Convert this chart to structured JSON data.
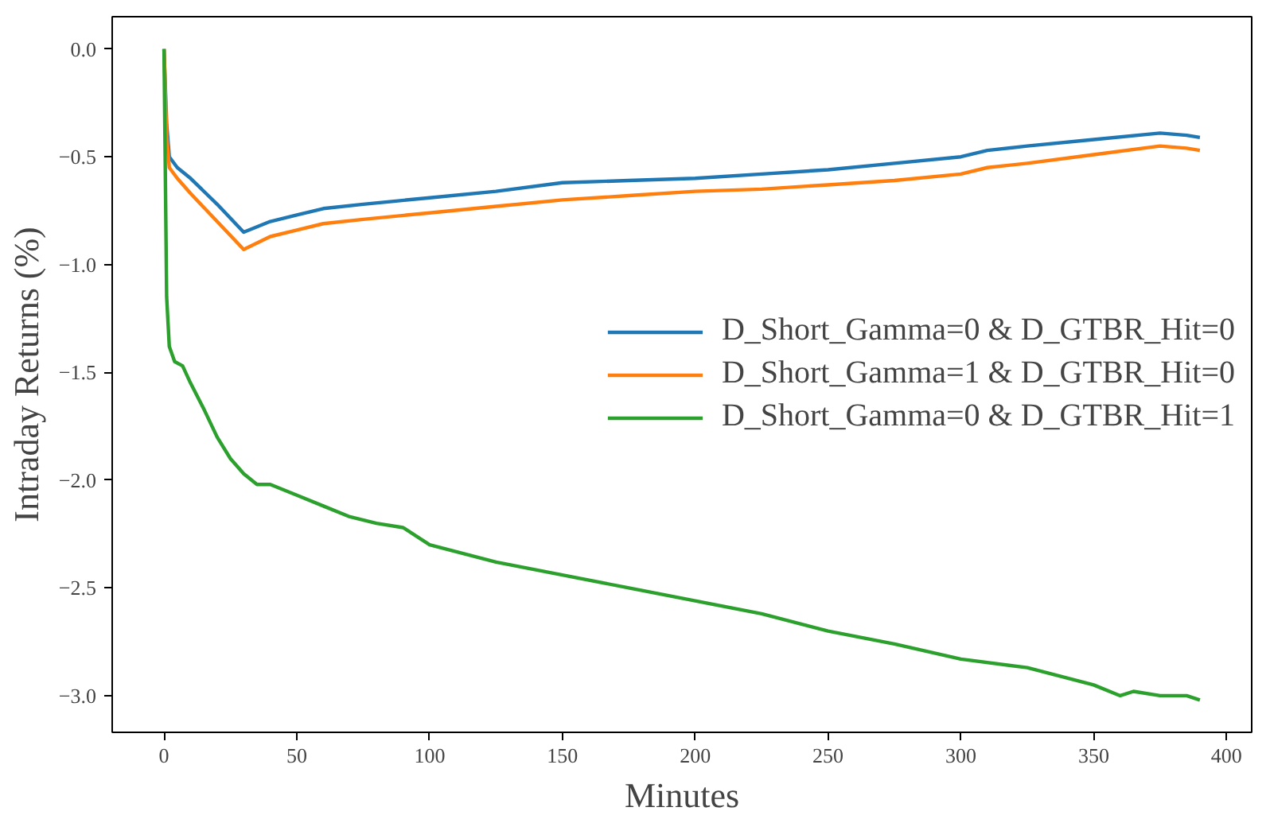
{
  "chart_data": {
    "type": "line",
    "xlabel": "Minutes",
    "ylabel": "Intraday Returns (%)",
    "xlim": [
      -19.5,
      409.5
    ],
    "ylim": [
      -3.17,
      0.15
    ],
    "xticks": [
      0,
      50,
      100,
      150,
      200,
      250,
      300,
      350,
      400
    ],
    "yticks": [
      {
        "value": 0,
        "label": "0.0"
      },
      {
        "value": -0.5,
        "label": "−0.5"
      },
      {
        "value": -1,
        "label": "−1.0"
      },
      {
        "value": -1.5,
        "label": "−1.5"
      },
      {
        "value": -2,
        "label": "−2.0"
      },
      {
        "value": -2.5,
        "label": "−2.5"
      },
      {
        "value": -3,
        "label": "−3.0"
      }
    ],
    "grid": false,
    "legend": "right",
    "line_style": "solid",
    "marker": "none",
    "series": [
      {
        "name": "D_Short_Gamma=0 & D_GTBR_Hit=0",
        "color": "#1f77b4",
        "x": [
          0,
          1,
          2,
          5,
          10,
          20,
          30,
          40,
          50,
          60,
          75,
          100,
          125,
          150,
          175,
          200,
          225,
          250,
          275,
          300,
          310,
          325,
          350,
          375,
          385,
          390
        ],
        "values": [
          0,
          -0.35,
          -0.5,
          -0.55,
          -0.6,
          -0.72,
          -0.85,
          -0.8,
          -0.77,
          -0.74,
          -0.72,
          -0.69,
          -0.66,
          -0.62,
          -0.61,
          -0.6,
          -0.58,
          -0.56,
          -0.53,
          -0.5,
          -0.47,
          -0.45,
          -0.42,
          -0.39,
          -0.4,
          -0.41
        ]
      },
      {
        "name": "D_Short_Gamma=1 & D_GTBR_Hit=0",
        "color": "#ff7f0e",
        "x": [
          0,
          1,
          2,
          5,
          10,
          20,
          30,
          40,
          50,
          60,
          75,
          100,
          125,
          150,
          175,
          200,
          225,
          250,
          275,
          300,
          310,
          325,
          350,
          375,
          385,
          390
        ],
        "values": [
          0,
          -0.4,
          -0.55,
          -0.6,
          -0.67,
          -0.8,
          -0.93,
          -0.87,
          -0.84,
          -0.81,
          -0.79,
          -0.76,
          -0.73,
          -0.7,
          -0.68,
          -0.66,
          -0.65,
          -0.63,
          -0.61,
          -0.58,
          -0.55,
          -0.53,
          -0.49,
          -0.45,
          -0.46,
          -0.47
        ]
      },
      {
        "name": "D_Short_Gamma=0 & D_GTBR_Hit=1",
        "color": "#2ca02c",
        "x": [
          0,
          1,
          2,
          4,
          7,
          10,
          15,
          20,
          25,
          30,
          35,
          40,
          50,
          60,
          70,
          80,
          90,
          100,
          125,
          150,
          175,
          200,
          225,
          250,
          275,
          300,
          325,
          350,
          360,
          365,
          375,
          385,
          390
        ],
        "values": [
          0,
          -1.15,
          -1.38,
          -1.45,
          -1.47,
          -1.55,
          -1.67,
          -1.8,
          -1.9,
          -1.97,
          -2.02,
          -2.02,
          -2.07,
          -2.12,
          -2.17,
          -2.2,
          -2.22,
          -2.3,
          -2.38,
          -2.44,
          -2.5,
          -2.56,
          -2.62,
          -2.7,
          -2.76,
          -2.83,
          -2.87,
          -2.95,
          -3.0,
          -2.98,
          -3.0,
          -3.0,
          -3.02
        ]
      }
    ]
  }
}
